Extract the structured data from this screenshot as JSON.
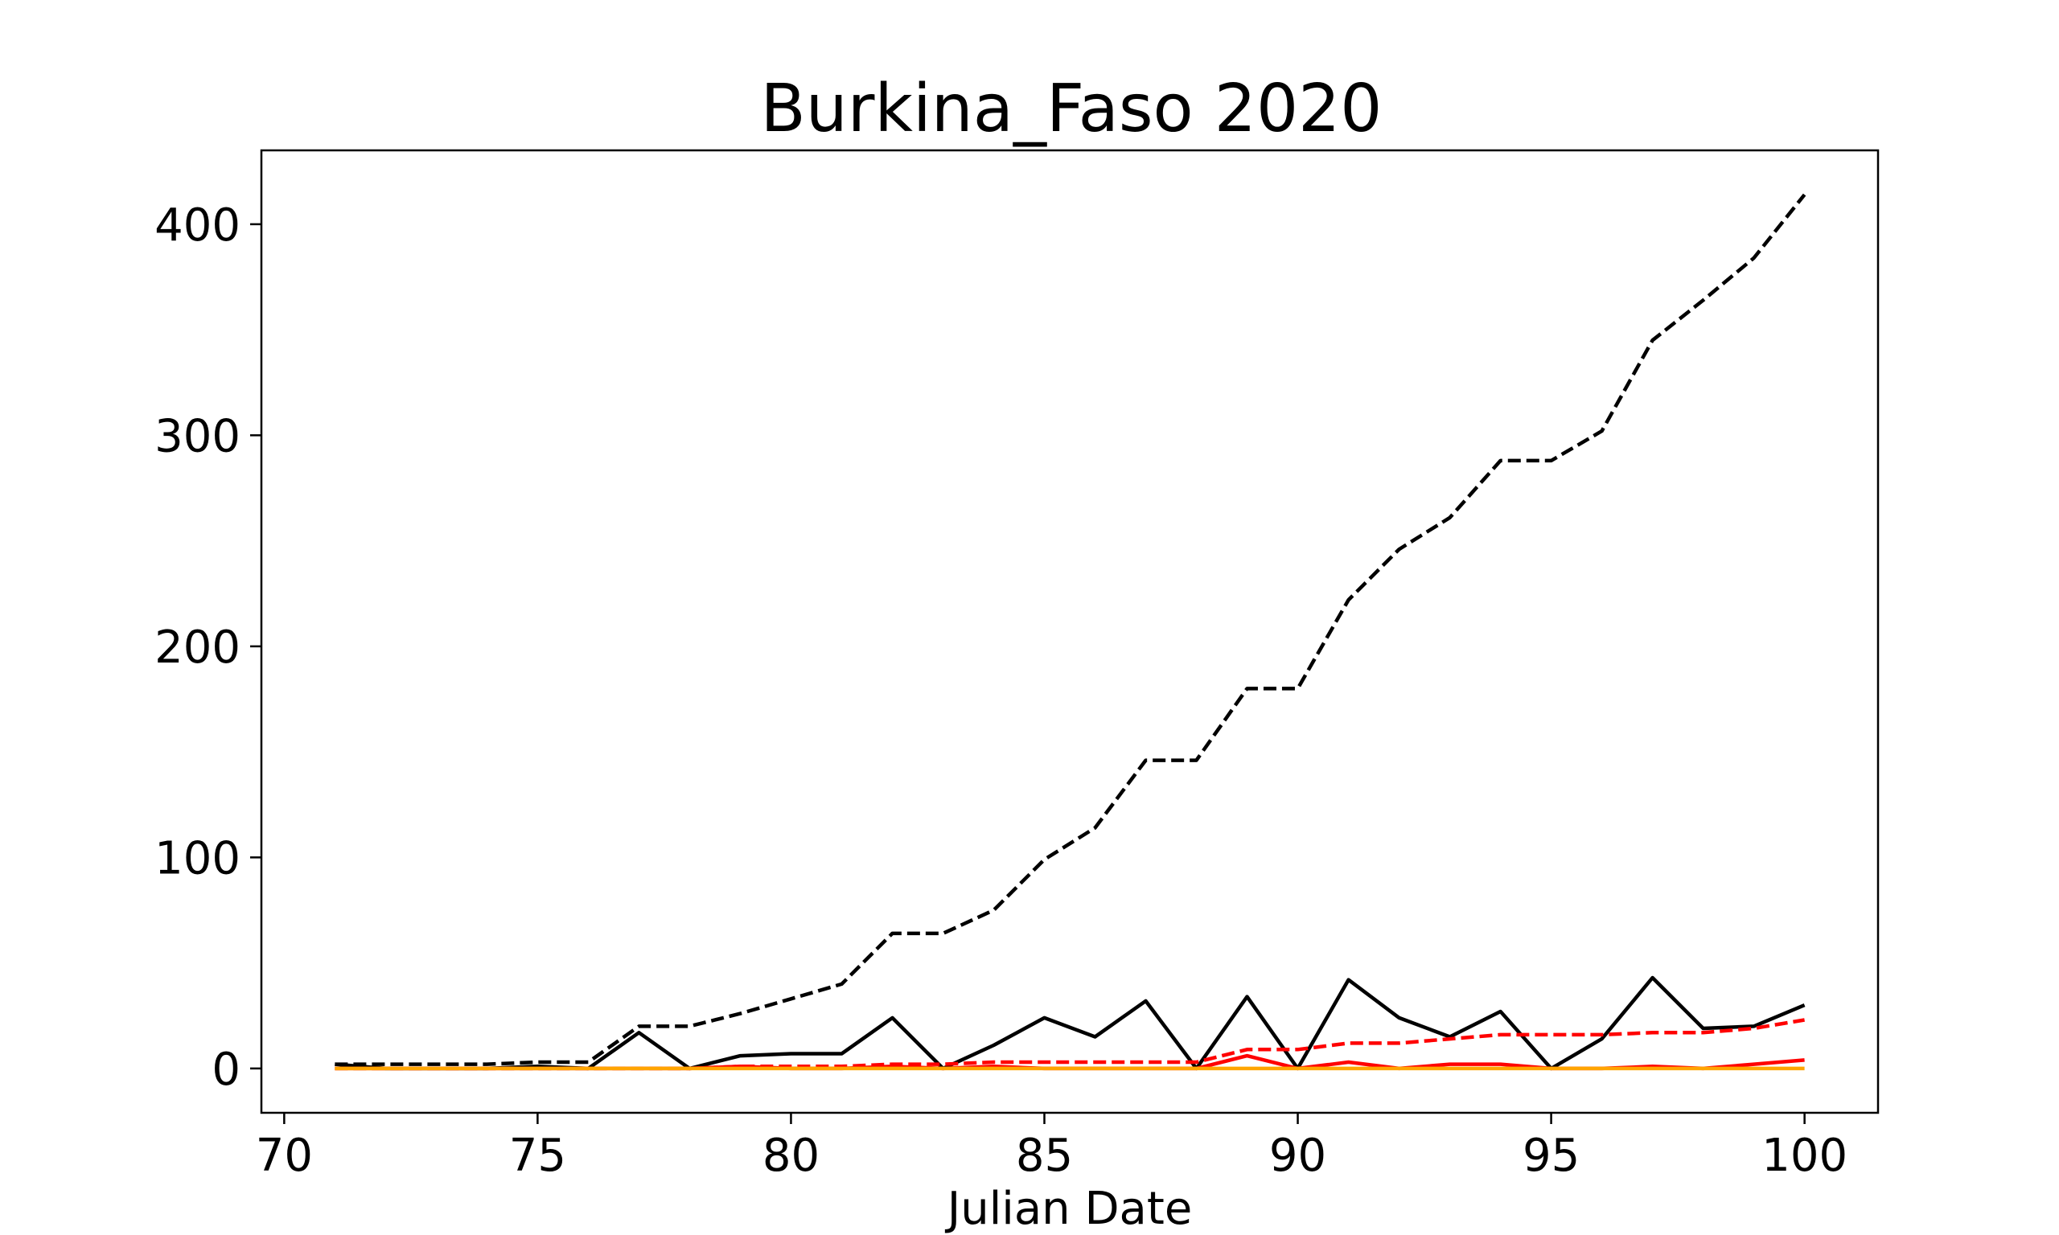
{
  "chart_data": {
    "type": "line",
    "title": "Burkina_Faso 2020",
    "xlabel": "Julian Date",
    "ylabel": "",
    "xlim": [
      69.55,
      101.45
    ],
    "ylim": [
      -21,
      435
    ],
    "xticks": [
      70,
      75,
      80,
      85,
      90,
      95,
      100
    ],
    "yticks": [
      0,
      100,
      200,
      300,
      400
    ],
    "grid": false,
    "legend": "none",
    "x": [
      71,
      72,
      73,
      74,
      75,
      76,
      77,
      78,
      79,
      80,
      81,
      82,
      83,
      84,
      85,
      86,
      87,
      88,
      89,
      90,
      91,
      92,
      93,
      94,
      95,
      96,
      97,
      98,
      99,
      100
    ],
    "series": [
      {
        "color": "#000000",
        "style": "dashed",
        "values": [
          2,
          2,
          2,
          2,
          3,
          3,
          20,
          20,
          26,
          33,
          40,
          64,
          64,
          75,
          99,
          114,
          146,
          146,
          180,
          180,
          222,
          246,
          261,
          288,
          288,
          302,
          345,
          364,
          384,
          414
        ]
      },
      {
        "color": "#000000",
        "style": "solid",
        "values": [
          2,
          0,
          0,
          0,
          1,
          0,
          17,
          0,
          6,
          7,
          7,
          24,
          0,
          11,
          24,
          15,
          32,
          0,
          34,
          0,
          42,
          24,
          15,
          27,
          0,
          14,
          43,
          19,
          20,
          30
        ]
      },
      {
        "color": "#ff0000",
        "style": "dashed",
        "values": [
          0,
          0,
          0,
          0,
          0,
          0,
          0,
          0,
          1,
          1,
          1,
          2,
          2,
          3,
          3,
          3,
          3,
          3,
          9,
          9,
          12,
          12,
          14,
          16,
          16,
          16,
          17,
          17,
          19,
          23
        ]
      },
      {
        "color": "#ff0000",
        "style": "solid",
        "values": [
          0,
          0,
          0,
          0,
          0,
          0,
          0,
          0,
          1,
          0,
          0,
          1,
          0,
          1,
          0,
          0,
          0,
          0,
          6,
          0,
          3,
          0,
          2,
          2,
          0,
          0,
          1,
          0,
          2,
          4
        ]
      },
      {
        "color": "#ffa500",
        "style": "solid",
        "values": [
          0,
          0,
          0,
          0,
          0,
          0,
          0,
          0,
          0,
          0,
          0,
          0,
          0,
          0,
          0,
          0,
          0,
          0,
          0,
          0,
          0,
          0,
          0,
          0,
          0,
          0,
          0,
          0,
          0,
          0
        ]
      }
    ]
  }
}
